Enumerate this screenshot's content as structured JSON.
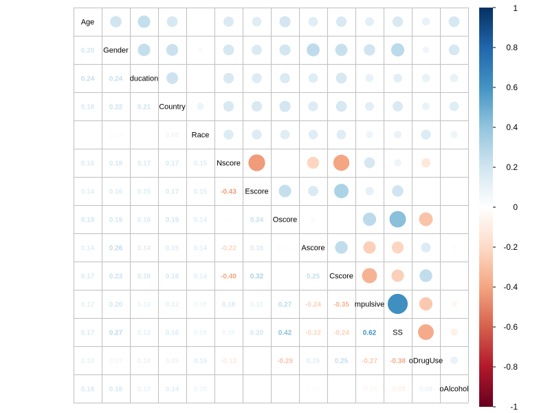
{
  "chart_data": {
    "type": "heatmap",
    "style": "corrplot-mixed",
    "variables": [
      "Age",
      "Gender",
      "ducation",
      "Country",
      "Race",
      "Nscore",
      "Escore",
      "Oscore",
      "Ascore",
      "Cscore",
      "mpulsive",
      "SS",
      "oDrugUse",
      "oAlcohol"
    ],
    "lower_method": "number",
    "upper_method": "circle",
    "matrix": [
      [
        1.0,
        0.2,
        0.24,
        0.18,
        0.0,
        0.16,
        0.14,
        0.19,
        0.14,
        0.17,
        0.12,
        0.17,
        0.1,
        0.18
      ],
      [
        0.2,
        1.0,
        0.24,
        0.22,
        0.03,
        0.18,
        0.16,
        0.19,
        0.26,
        0.23,
        0.2,
        0.27,
        0.07,
        0.18
      ],
      [
        0.24,
        0.24,
        1.0,
        0.21,
        0.0,
        0.17,
        0.15,
        0.16,
        0.14,
        0.18,
        0.1,
        0.12,
        0.1,
        0.1
      ],
      [
        0.18,
        0.22,
        0.21,
        1.0,
        0.08,
        0.17,
        0.17,
        0.19,
        0.15,
        0.18,
        0.12,
        0.16,
        0.09,
        0.14
      ],
      [
        0.0,
        0.03,
        0.0,
        0.08,
        1.0,
        0.15,
        0.15,
        0.14,
        0.14,
        0.14,
        0.08,
        0.09,
        0.15,
        0.08
      ],
      [
        0.16,
        0.18,
        0.17,
        0.17,
        0.15,
        1.0,
        -0.43,
        -0.01,
        -0.22,
        -0.4,
        0.18,
        0.08,
        -0.13,
        0.01
      ],
      [
        0.14,
        0.16,
        0.15,
        0.17,
        0.15,
        -0.43,
        1.0,
        0.24,
        0.16,
        0.32,
        0.11,
        0.2,
        0.0,
        0.0
      ],
      [
        0.19,
        0.19,
        0.16,
        0.19,
        0.14,
        -0.01,
        0.24,
        1.0,
        0.03,
        0.0,
        0.27,
        0.42,
        -0.29,
        0.0
      ],
      [
        0.14,
        0.26,
        0.14,
        0.15,
        0.14,
        -0.22,
        0.16,
        0.03,
        1.0,
        0.25,
        -0.24,
        -0.22,
        0.15,
        0.02
      ],
      [
        0.17,
        0.23,
        0.18,
        0.18,
        0.14,
        -0.4,
        0.32,
        0.0,
        0.25,
        1.0,
        -0.35,
        -0.24,
        0.25,
        0.01
      ],
      [
        0.12,
        0.2,
        0.1,
        0.12,
        0.08,
        0.18,
        0.11,
        0.27,
        -0.24,
        -0.35,
        1.0,
        0.62,
        -0.27,
        -0.05
      ],
      [
        0.17,
        0.27,
        0.12,
        0.16,
        0.09,
        0.08,
        0.2,
        0.42,
        -0.22,
        -0.24,
        0.62,
        1.0,
        -0.38,
        -0.08
      ],
      [
        0.1,
        0.07,
        0.1,
        0.09,
        0.15,
        -0.13,
        0.0,
        -0.29,
        0.15,
        0.25,
        -0.27,
        -0.38,
        1.0,
        0.09
      ],
      [
        0.18,
        0.18,
        0.1,
        0.14,
        0.08,
        0.01,
        0.0,
        0.0,
        0.02,
        0.01,
        -0.05,
        -0.08,
        0.09,
        1.0
      ]
    ],
    "colorbar": {
      "range": [
        -1,
        1
      ],
      "ticks": [
        "1",
        "0.8",
        "0.6",
        "0.4",
        "0.2",
        "0",
        "-0.2",
        "-0.4",
        "-0.6",
        "-0.8",
        "-1"
      ]
    },
    "colors": {
      "negative_end": "#67001F",
      "negative_mid": "#D6604D",
      "neutral": "#FFFFFF",
      "positive_mid": "#4393C3",
      "positive_end": "#053061",
      "grid": "#BFBFBF"
    },
    "grid": true,
    "legend_position": "right"
  }
}
